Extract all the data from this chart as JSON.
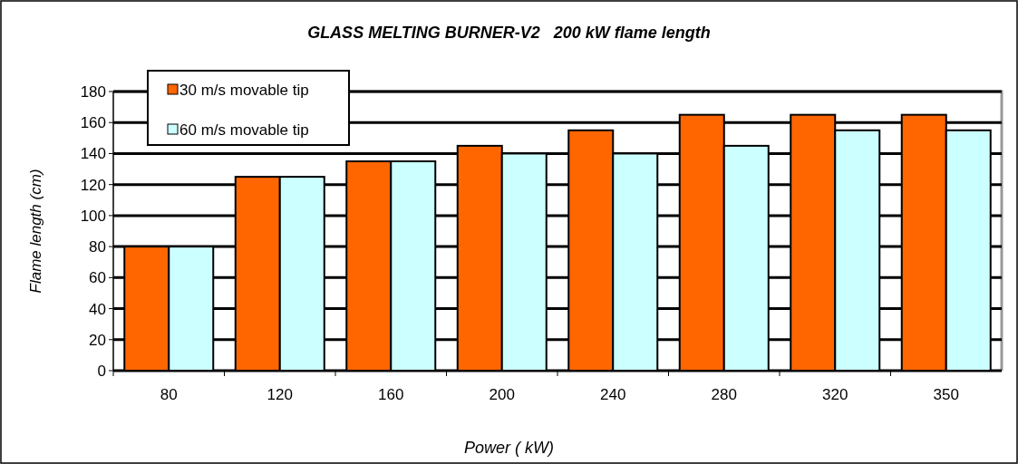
{
  "chart_data": {
    "type": "bar",
    "title": "GLASS MELTING BURNER-V2   200 kW flame length",
    "xlabel": "Power ( kW)",
    "ylabel": "Flame length (cm)",
    "categories": [
      "80",
      "120",
      "160",
      "200",
      "240",
      "280",
      "320",
      "350"
    ],
    "series": [
      {
        "name": "30 m/s movable tip",
        "color": "#ff6600",
        "values": [
          80,
          125,
          135,
          145,
          155,
          165,
          165,
          165
        ]
      },
      {
        "name": "60 m/s movable tip",
        "color": "#ccffff",
        "values": [
          80,
          125,
          135,
          140,
          140,
          145,
          155,
          155
        ]
      }
    ],
    "ylim": [
      0,
      180
    ],
    "yticks": [
      0,
      20,
      40,
      60,
      80,
      100,
      120,
      140,
      160,
      180
    ],
    "grid": "y",
    "legend": "top left"
  }
}
